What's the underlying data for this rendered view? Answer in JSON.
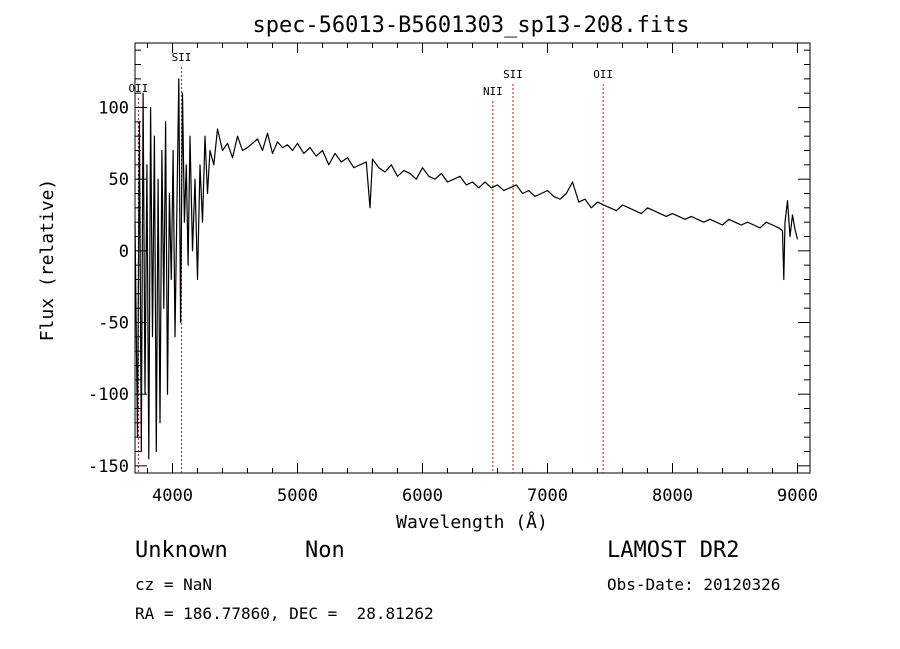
{
  "chart_data": {
    "type": "line",
    "title": "spec-56013-B5601303_sp13-208.fits",
    "xlabel": "Wavelength (Å)",
    "ylabel": "Flux (relative)",
    "xlim": [
      3700,
      9100
    ],
    "ylim": [
      -155,
      145
    ],
    "x_ticks": [
      4000,
      5000,
      6000,
      7000,
      8000,
      9000
    ],
    "y_ticks": [
      -150,
      -100,
      -50,
      0,
      50,
      100
    ],
    "grid": false,
    "series": [
      {
        "x": [
          3700,
          3720,
          3735,
          3750,
          3765,
          3780,
          3795,
          3810,
          3825,
          3840,
          3855,
          3870,
          3885,
          3900,
          3915,
          3930,
          3945,
          3960,
          3975,
          3990,
          4005,
          4020,
          4035,
          4050,
          4065,
          4080,
          4095,
          4110,
          4125,
          4140,
          4160,
          4180,
          4200,
          4220,
          4240,
          4260,
          4280,
          4300,
          4330,
          4360,
          4400,
          4440,
          4480,
          4520,
          4560,
          4600,
          4640,
          4680,
          4720,
          4760,
          4800,
          4840,
          4880,
          4920,
          4960,
          5000,
          5050,
          5100,
          5150,
          5200,
          5250,
          5300,
          5350,
          5400,
          5450,
          5500,
          5550,
          5580,
          5600,
          5650,
          5700,
          5750,
          5800,
          5850,
          5900,
          5950,
          6000,
          6050,
          6100,
          6150,
          6200,
          6250,
          6300,
          6350,
          6400,
          6450,
          6500,
          6550,
          6600,
          6650,
          6700,
          6750,
          6800,
          6850,
          6900,
          6950,
          7000,
          7050,
          7100,
          7150,
          7200,
          7250,
          7300,
          7350,
          7400,
          7450,
          7500,
          7550,
          7600,
          7650,
          7700,
          7750,
          7800,
          7850,
          7900,
          7950,
          8000,
          8050,
          8100,
          8150,
          8200,
          8250,
          8300,
          8350,
          8400,
          8450,
          8500,
          8550,
          8600,
          8650,
          8700,
          8750,
          8800,
          8850,
          8880,
          8890,
          8900,
          8920,
          8940,
          8960,
          8980,
          9000
        ],
        "y": [
          20,
          -130,
          90,
          -140,
          110,
          -100,
          60,
          -145,
          100,
          -60,
          80,
          -140,
          50,
          -120,
          70,
          -40,
          90,
          -100,
          40,
          -20,
          70,
          -60,
          30,
          120,
          -50,
          110,
          20,
          60,
          -10,
          80,
          0,
          50,
          -20,
          60,
          20,
          80,
          40,
          70,
          60,
          85,
          70,
          75,
          65,
          80,
          70,
          72,
          75,
          78,
          70,
          82,
          68,
          76,
          72,
          74,
          70,
          75,
          68,
          72,
          66,
          70,
          60,
          68,
          62,
          65,
          58,
          60,
          62,
          30,
          64,
          58,
          55,
          60,
          52,
          56,
          54,
          50,
          58,
          52,
          50,
          54,
          48,
          50,
          52,
          46,
          48,
          44,
          48,
          44,
          46,
          42,
          44,
          46,
          40,
          42,
          38,
          40,
          42,
          38,
          36,
          40,
          48,
          34,
          36,
          30,
          34,
          32,
          30,
          28,
          32,
          30,
          28,
          26,
          30,
          28,
          26,
          24,
          26,
          24,
          22,
          24,
          22,
          20,
          22,
          20,
          18,
          22,
          20,
          18,
          20,
          18,
          16,
          20,
          18,
          16,
          14,
          -20,
          20,
          35,
          10,
          25,
          15,
          8
        ]
      }
    ],
    "annotations": [
      {
        "label": "OII",
        "x": 3727
      },
      {
        "label": "SII",
        "x": 4072
      },
      {
        "label": "NII",
        "x": 6563
      },
      {
        "label": "SII",
        "x": 6724
      },
      {
        "label": "OII",
        "x": 7445
      }
    ]
  },
  "info": {
    "class_label": "Unknown",
    "subclass_label": "Non",
    "survey": "LAMOST DR2",
    "cz": "cz = NaN",
    "obs_date": "Obs-Date: 20120326",
    "coords": "RA = 186.77860, DEC =  28.81262"
  }
}
